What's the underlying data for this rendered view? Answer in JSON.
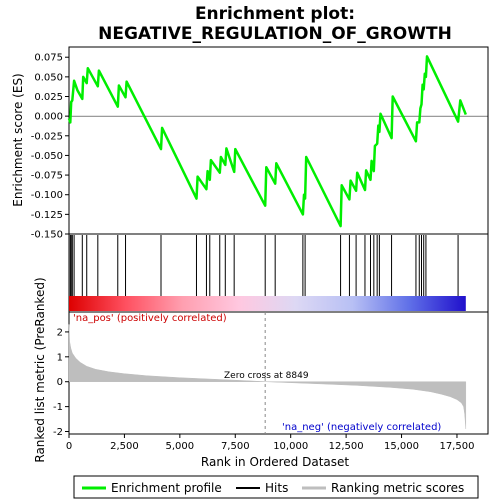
{
  "chart_data": {
    "type": "line",
    "title_line1": "Enrichment plot:",
    "title_line2": "NEGATIVE_REGULATION_OF_GROWTH",
    "xlabel": "Rank in Ordered Dataset",
    "x_ticks": [
      0,
      2500,
      5000,
      7500,
      10000,
      12500,
      15000,
      17500
    ],
    "x_tick_labels": [
      "0",
      "2,500",
      "5,000",
      "7,500",
      "10,000",
      "12,500",
      "15,000",
      "17,500"
    ],
    "xlim": [
      0,
      18900
    ],
    "n_genes": 17900,
    "top_panel": {
      "ylabel": "Enrichment score (ES)",
      "ylim": [
        -0.15,
        0.088
      ],
      "y_ticks": [
        0.075,
        0.05,
        0.025,
        0.0,
        -0.025,
        -0.05,
        -0.075,
        -0.1,
        -0.125,
        -0.15
      ],
      "y_tick_labels": [
        "0.075",
        "0.050",
        "0.025",
        "0.000",
        "-0.025",
        "-0.050",
        "-0.075",
        "-0.100",
        "-0.125",
        "-0.150"
      ],
      "series": [
        {
          "name": "Enrichment profile",
          "color": "#00ee00",
          "x": [
            0,
            60,
            100,
            150,
            230,
            380,
            600,
            640,
            800,
            850,
            1300,
            1350,
            2200,
            2250,
            2550,
            2600,
            4150,
            4200,
            5750,
            5800,
            6200,
            6250,
            6350,
            6400,
            6800,
            6850,
            7050,
            7100,
            7450,
            7500,
            8850,
            8900,
            9300,
            9350,
            10550,
            10600,
            10650,
            10700,
            12250,
            12300,
            12650,
            12700,
            12950,
            13000,
            13350,
            13400,
            13600,
            13650,
            13750,
            13800,
            13900,
            13950,
            14000,
            14050,
            14550,
            14600,
            15650,
            15700,
            15800,
            15850,
            15900,
            15950,
            16000,
            16050,
            16100,
            16150,
            17550,
            17650,
            17900
          ],
          "y": [
            -0.003,
            -0.008,
            0.018,
            0.02,
            0.045,
            0.033,
            0.022,
            0.05,
            0.042,
            0.061,
            0.038,
            0.058,
            0.012,
            0.039,
            0.024,
            0.044,
            -0.042,
            -0.015,
            -0.105,
            -0.077,
            -0.093,
            -0.07,
            -0.081,
            -0.056,
            -0.072,
            -0.052,
            -0.062,
            -0.041,
            -0.071,
            -0.042,
            -0.114,
            -0.065,
            -0.086,
            -0.06,
            -0.125,
            -0.1,
            -0.105,
            -0.052,
            -0.14,
            -0.088,
            -0.106,
            -0.082,
            -0.095,
            -0.072,
            -0.094,
            -0.069,
            -0.081,
            -0.057,
            -0.07,
            -0.038,
            -0.035,
            -0.012,
            -0.02,
            0.003,
            -0.028,
            0.025,
            -0.032,
            -0.008,
            -0.008,
            0.01,
            0.015,
            0.04,
            0.034,
            0.054,
            0.05,
            0.076,
            -0.007,
            0.02,
            0.002
          ]
        }
      ]
    },
    "hits": {
      "name": "Hits",
      "color": "#000000",
      "x": [
        60,
        100,
        150,
        230,
        600,
        800,
        1300,
        2200,
        2550,
        4150,
        5750,
        6200,
        6350,
        6800,
        7050,
        7450,
        8850,
        9300,
        10550,
        10650,
        12250,
        12650,
        12950,
        13350,
        13600,
        13750,
        13900,
        14000,
        14550,
        15650,
        15800,
        15900,
        16000,
        16100,
        17550
      ]
    },
    "heatmap_bar": {
      "colors_from_left": [
        "#dd0000",
        "#ff5060",
        "#ff9fb0",
        "#ffc8e0",
        "#ddd8f4",
        "#b8c0f4",
        "#6070e8",
        "#2010cc"
      ]
    },
    "bottom_panel": {
      "ylabel": "Ranked list metric (PreRanked)",
      "ylim": [
        -2.1,
        2.8
      ],
      "y_ticks": [
        2,
        1,
        0,
        -1,
        -2
      ],
      "y_tick_labels": [
        "2",
        "1",
        "0",
        "-1",
        "-2"
      ],
      "series": [
        {
          "name": "Ranking metric scores",
          "color": "#bebebe",
          "x": [
            0,
            30,
            80,
            150,
            300,
            500,
            800,
            1200,
            1800,
            2500,
            3500,
            5000,
            6500,
            8000,
            8849,
            10000,
            11500,
            13000,
            14500,
            15500,
            16300,
            16800,
            17200,
            17500,
            17700,
            17800,
            17850,
            17900
          ],
          "y": [
            2.3,
            1.6,
            1.35,
            1.15,
            0.95,
            0.78,
            0.62,
            0.5,
            0.4,
            0.32,
            0.24,
            0.16,
            0.1,
            0.04,
            0.0,
            -0.04,
            -0.09,
            -0.15,
            -0.23,
            -0.3,
            -0.4,
            -0.5,
            -0.6,
            -0.72,
            -0.85,
            -1.0,
            -1.3,
            -1.9
          ]
        }
      ],
      "zero_cross_rank": 8849,
      "zero_cross_label": "Zero cross at 8849",
      "pos_label": "'na_pos' (positively correlated)",
      "neg_label": "'na_neg' (negatively correlated)"
    },
    "legend": [
      {
        "label": "Enrichment profile",
        "color": "#00ee00"
      },
      {
        "label": "Hits",
        "color": "#000000"
      },
      {
        "label": "Ranking metric scores",
        "color": "#bebebe"
      }
    ]
  }
}
